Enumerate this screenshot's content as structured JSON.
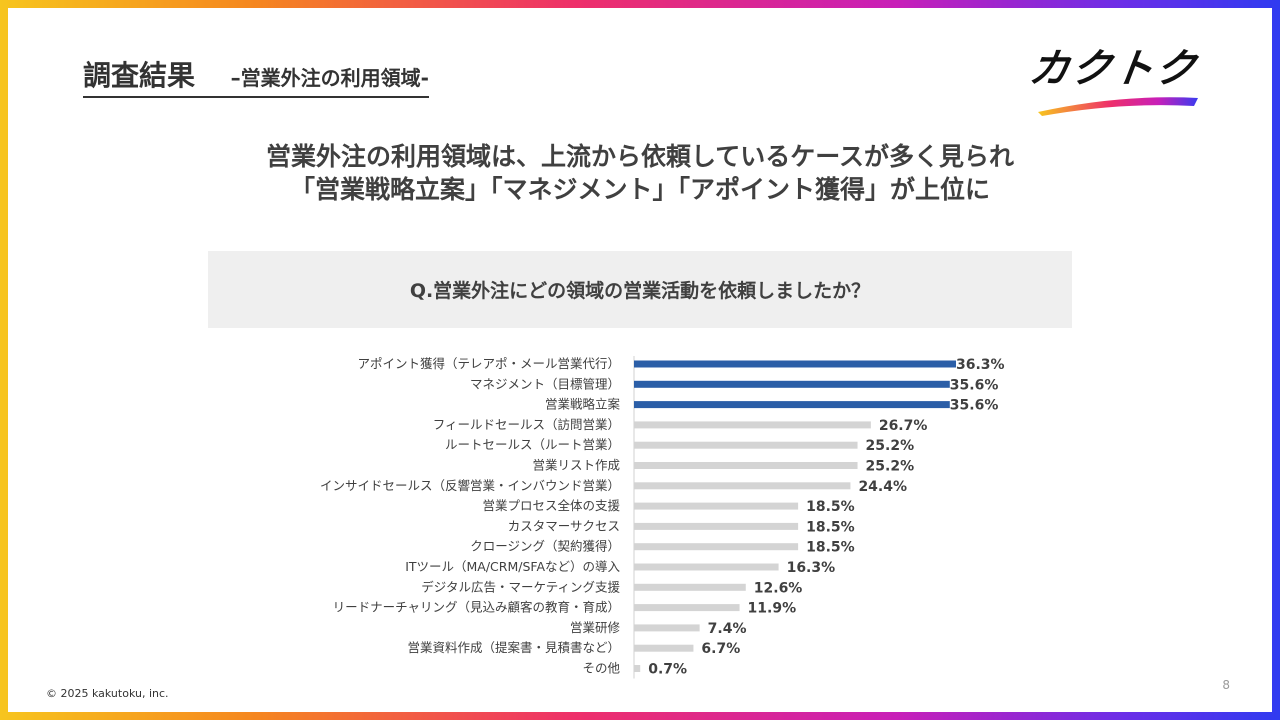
{
  "header": {
    "title": "調査結果",
    "subtitle": "–営業外注の利用領域-",
    "logo_text": "カクトク"
  },
  "headline": {
    "line1": "営業外注の利用領域は、上流から依頼しているケースが多く見られ",
    "line2": "「営業戦略立案」「マネジメント」「アポイント獲得」が上位に"
  },
  "question": "Q.営業外注にどの領域の営業活動を依頼しましたか？",
  "footer": {
    "copyright": "© 2025 kakutoku, inc.",
    "page": "8"
  },
  "colors": {
    "highlight": "#2b5ea7",
    "normal": "#d4d4d4",
    "axis": "#d0d0d0"
  },
  "chart_data": {
    "type": "bar",
    "orientation": "horizontal",
    "categories": [
      "アポイント獲得（テレアポ・メール営業代行）",
      "マネジメント（目標管理）",
      "営業戦略立案",
      "フィールドセールス（訪問営業）",
      "ルートセールス（ルート営業）",
      "営業リスト作成",
      "インサイドセールス（反響営業・インバウンド営業）",
      "営業プロセス全体の支援",
      "カスタマーサクセス",
      "クロージング（契約獲得）",
      "ITツール（MA/CRM/SFAなど）の導入",
      "デジタル広告・マーケティング支援",
      "リードナーチャリング（見込み顧客の教育・育成）",
      "営業研修",
      "営業資料作成（提案書・見積書など）",
      "その他"
    ],
    "values": [
      36.3,
      35.6,
      35.6,
      26.7,
      25.2,
      25.2,
      24.4,
      18.5,
      18.5,
      18.5,
      16.3,
      12.6,
      11.9,
      7.4,
      6.7,
      0.7
    ],
    "value_labels": [
      "36.3%",
      "35.6%",
      "35.6%",
      "26.7%",
      "25.2%",
      "25.2%",
      "24.4%",
      "18.5%",
      "18.5%",
      "18.5%",
      "16.3%",
      "12.6%",
      "11.9%",
      "7.4%",
      "6.7%",
      "0.7%"
    ],
    "highlighted": [
      true,
      true,
      true,
      false,
      false,
      false,
      false,
      false,
      false,
      false,
      false,
      false,
      false,
      false,
      false,
      false
    ],
    "unit": "%",
    "xlim": [
      0,
      40
    ],
    "grid": false,
    "legend": "none"
  }
}
